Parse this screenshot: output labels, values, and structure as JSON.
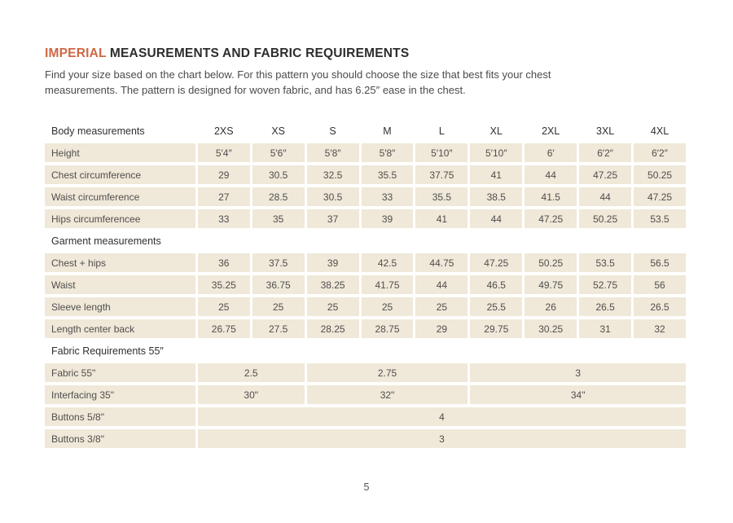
{
  "page": {
    "title": {
      "accent": "IMPERIAL",
      "rest": "MEASUREMENTS AND FABRIC REQUIREMENTS"
    },
    "intro": {
      "line1": "Find your size based on the chart below. For this pattern you should choose the size that best fits your chest",
      "line2": "measurements. The pattern is designed for woven fabric, and has 6.25″ ease in the chest."
    },
    "page_number": "5"
  },
  "colors": {
    "accent": "#CE6846",
    "cell_bg": "#F0E8D8",
    "body_text": "#4B4B4B"
  },
  "chart_data": {
    "type": "table",
    "columns": [
      "Body measurements",
      "2XS",
      "XS",
      "S",
      "M",
      "L",
      "XL",
      "2XL",
      "3XL",
      "4XL"
    ],
    "sections": [
      {
        "header": null,
        "rows": [
          {
            "label": "Height",
            "values": [
              "5′4″",
              "5′6″",
              "5′8″",
              "5′8″",
              "5′10″",
              "5′10″",
              "6′",
              "6′2″",
              "6′2″"
            ]
          },
          {
            "label": "Chest circumference",
            "values": [
              "29",
              "30.5",
              "32.5",
              "35.5",
              "37.75",
              "41",
              "44",
              "47.25",
              "50.25"
            ]
          },
          {
            "label": "Waist circumference",
            "values": [
              "27",
              "28.5",
              "30.5",
              "33",
              "35.5",
              "38.5",
              "41.5",
              "44",
              "47.25"
            ]
          },
          {
            "label": "Hips circumferencee",
            "values": [
              "33",
              "35",
              "37",
              "39",
              "41",
              "44",
              "47.25",
              "50.25",
              "53.5"
            ]
          }
        ]
      },
      {
        "header": "Garment measurements",
        "rows": [
          {
            "label": "Chest + hips",
            "values": [
              "36",
              "37.5",
              "39",
              "42.5",
              "44.75",
              "47.25",
              "50.25",
              "53.5",
              "56.5"
            ]
          },
          {
            "label": "Waist",
            "values": [
              "35.25",
              "36.75",
              "38.25",
              "41.75",
              "44",
              "46.5",
              "49.75",
              "52.75",
              "56"
            ]
          },
          {
            "label": "Sleeve length",
            "values": [
              "25",
              "25",
              "25",
              "25",
              "25",
              "25.5",
              "26",
              "26.5",
              "26.5"
            ]
          },
          {
            "label": "Length center back",
            "values": [
              "26.75",
              "27.5",
              "28.25",
              "28.75",
              "29",
              "29.75",
              "30.25",
              "31",
              "32"
            ]
          }
        ]
      },
      {
        "header": "Fabric Requirements 55″",
        "rows": [
          {
            "label": "Fabric 55\"",
            "cells": [
              {
                "span": 2,
                "value": "2.5"
              },
              {
                "span": 3,
                "value": "2.75"
              },
              {
                "span": 4,
                "value": "3"
              }
            ]
          },
          {
            "label": "Interfacing 35\"",
            "cells": [
              {
                "span": 2,
                "value": "30\""
              },
              {
                "span": 3,
                "value": "32\""
              },
              {
                "span": 4,
                "value": "34\""
              }
            ]
          },
          {
            "label": "Buttons 5/8\"",
            "cells": [
              {
                "span": 9,
                "value": "4"
              }
            ]
          },
          {
            "label": "Buttons 3/8\"",
            "cells": [
              {
                "span": 9,
                "value": "3"
              }
            ]
          }
        ]
      }
    ]
  }
}
